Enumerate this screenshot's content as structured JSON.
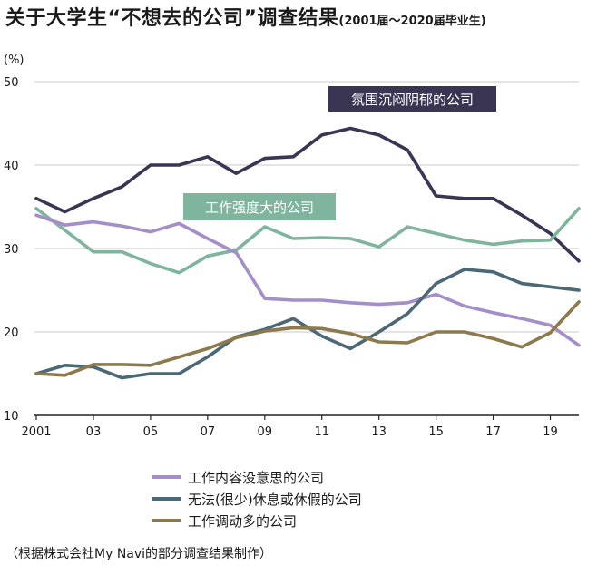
{
  "title": "关于大学生“不想去的公司”调查结果",
  "subtitle": "(2001届～2020届毕业生)",
  "source": "（根据株式会社My Navi的部分调查结果制作）",
  "chart_data": {
    "type": "line",
    "unit_label": "(%)",
    "ylim": [
      10,
      50
    ],
    "yticks": [
      10,
      20,
      30,
      40,
      50
    ],
    "xlim": [
      2001,
      2020
    ],
    "xticks": [
      {
        "x": 2001,
        "label": "2001"
      },
      {
        "x": 2003,
        "label": "03"
      },
      {
        "x": 2005,
        "label": "05"
      },
      {
        "x": 2007,
        "label": "07"
      },
      {
        "x": 2009,
        "label": "09"
      },
      {
        "x": 2011,
        "label": "11"
      },
      {
        "x": 2013,
        "label": "13"
      },
      {
        "x": 2015,
        "label": "15"
      },
      {
        "x": 2017,
        "label": "17"
      },
      {
        "x": 2019,
        "label": "19"
      }
    ],
    "grid": true,
    "legend_position": "bottom",
    "x": [
      2001,
      2002,
      2003,
      2004,
      2005,
      2006,
      2007,
      2008,
      2009,
      2010,
      2011,
      2012,
      2013,
      2014,
      2015,
      2016,
      2017,
      2018,
      2019,
      2020
    ],
    "series": [
      {
        "name": "氛围沉闷阴郁的公司",
        "color": "#3b3554",
        "in_legend": false,
        "callout": "氛围沉闷阴郁的公司",
        "values": [
          36.0,
          34.4,
          36.0,
          37.4,
          40.0,
          40.0,
          41.0,
          39.0,
          40.8,
          41.0,
          43.6,
          44.4,
          43.6,
          41.8,
          36.3,
          36.0,
          36.0,
          34.0,
          31.8,
          28.5
        ]
      },
      {
        "name": "工作强度大的公司",
        "color": "#7fb59d",
        "in_legend": false,
        "callout": "工作强度大的公司",
        "values": [
          34.8,
          32.2,
          29.6,
          29.6,
          28.2,
          27.1,
          29.1,
          29.8,
          32.6,
          31.2,
          31.3,
          31.2,
          30.2,
          32.6,
          31.8,
          31.0,
          30.5,
          30.9,
          31.0,
          34.8
        ]
      },
      {
        "name": "工作内容没意思的公司",
        "color": "#a48ec8",
        "in_legend": true,
        "values": [
          34.0,
          32.8,
          33.2,
          32.7,
          32.0,
          33.0,
          31.2,
          29.5,
          24.0,
          23.8,
          23.8,
          23.5,
          23.3,
          23.5,
          24.5,
          23.1,
          22.3,
          21.6,
          20.8,
          18.4
        ]
      },
      {
        "name": "无法(很少)休息或休假的公司",
        "color": "#4a6875",
        "in_legend": true,
        "values": [
          15.0,
          16.0,
          15.8,
          14.5,
          15.0,
          15.0,
          17.0,
          19.4,
          20.3,
          21.6,
          19.5,
          18.0,
          20.0,
          22.2,
          25.8,
          27.5,
          27.2,
          25.8,
          25.4,
          25.0
        ]
      },
      {
        "name": "工作调动多的公司",
        "color": "#8d7a4c",
        "in_legend": true,
        "values": [
          15.0,
          14.8,
          16.1,
          16.1,
          16.0,
          17.0,
          18.0,
          19.3,
          20.1,
          20.5,
          20.4,
          19.8,
          18.8,
          18.7,
          20.0,
          20.0,
          19.2,
          18.2,
          19.9,
          23.6
        ]
      }
    ]
  }
}
